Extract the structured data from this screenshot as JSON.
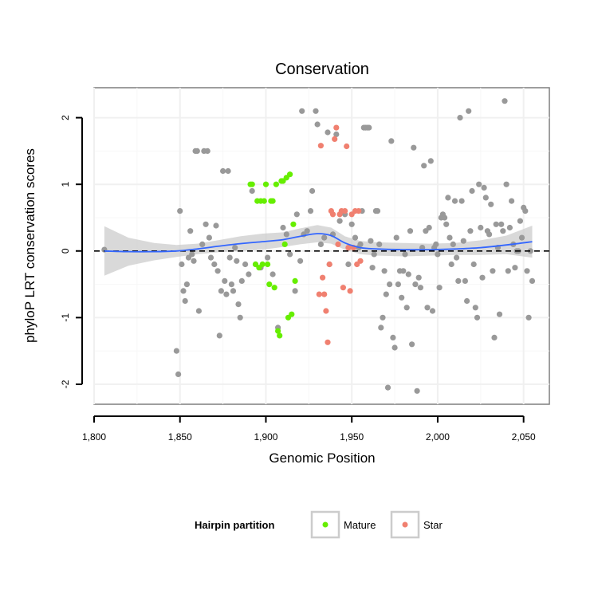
{
  "chart_data": {
    "type": "scatter",
    "title": "Conservation",
    "xlabel": "Genomic Position",
    "ylabel": "phyloP LRT conservation scores",
    "xlim": [
      1800,
      2065
    ],
    "ylim": [
      -2.3,
      2.45
    ],
    "x_ticks": [
      1800,
      1850,
      1900,
      1950,
      2000,
      2050
    ],
    "x_tick_labels": [
      "1,800",
      "1,850",
      "1,900",
      "1,950",
      "2,000",
      "2,050"
    ],
    "y_ticks": [
      -2,
      -1,
      0,
      1,
      2
    ],
    "y_tick_labels": [
      "-2",
      "-1",
      "0",
      "1",
      "2"
    ],
    "reference_line": {
      "y": 0,
      "style": "dashed",
      "color": "#000000"
    },
    "grid": true,
    "legend": {
      "title": "Hairpin partition",
      "placement": "bottom",
      "entries": [
        {
          "label": "Mature",
          "color": "#66ee00"
        },
        {
          "label": "Star",
          "color": "#f08070"
        }
      ]
    },
    "colors": {
      "other": "#999999",
      "mature": "#66ee00",
      "star": "#f08070",
      "smooth_line": "#3366ff",
      "band": "#cccccc"
    },
    "series": [
      {
        "group": "other",
        "points": [
          [
            1806,
            0.02
          ],
          [
            1848,
            -1.5
          ],
          [
            1849,
            -1.85
          ],
          [
            1850,
            0.6
          ],
          [
            1851,
            -0.2
          ],
          [
            1852,
            -0.6
          ],
          [
            1853,
            -0.75
          ],
          [
            1854,
            -0.5
          ],
          [
            1855,
            -0.1
          ],
          [
            1856,
            0.3
          ],
          [
            1857,
            -0.05
          ],
          [
            1858,
            -0.15
          ],
          [
            1859,
            1.5
          ],
          [
            1860,
            1.5
          ],
          [
            1861,
            -0.9
          ],
          [
            1863,
            0.1
          ],
          [
            1864,
            1.5
          ],
          [
            1865,
            0.4
          ],
          [
            1866,
            1.5
          ],
          [
            1867,
            0.2
          ],
          [
            1868,
            -0.1
          ],
          [
            1870,
            -0.2
          ],
          [
            1871,
            0.38
          ],
          [
            1872,
            -0.3
          ],
          [
            1873,
            -1.27
          ],
          [
            1874,
            -0.6
          ],
          [
            1875,
            1.2
          ],
          [
            1876,
            -0.45
          ],
          [
            1877,
            -0.65
          ],
          [
            1878,
            1.2
          ],
          [
            1879,
            -0.1
          ],
          [
            1880,
            -0.5
          ],
          [
            1881,
            -0.6
          ],
          [
            1882,
            0.05
          ],
          [
            1883,
            -0.15
          ],
          [
            1884,
            -0.8
          ],
          [
            1885,
            -1.0
          ],
          [
            1886,
            -0.45
          ],
          [
            1888,
            -0.2
          ],
          [
            1890,
            -0.35
          ],
          [
            1892,
            0.9
          ],
          [
            1894,
            -0.2
          ],
          [
            1897,
            -0.25
          ],
          [
            1901,
            -0.1
          ],
          [
            1904,
            -0.35
          ],
          [
            1907,
            -1.15
          ],
          [
            1910,
            0.35
          ],
          [
            1912,
            0.25
          ],
          [
            1914,
            -0.05
          ],
          [
            1917,
            -0.6
          ],
          [
            1918,
            0.55
          ],
          [
            1920,
            -0.15
          ],
          [
            1921,
            2.1
          ],
          [
            1922,
            0.25
          ],
          [
            1924,
            0.3
          ],
          [
            1926,
            0.6
          ],
          [
            1927,
            0.9
          ],
          [
            1929,
            2.1
          ],
          [
            1930,
            1.9
          ],
          [
            1932,
            0.1
          ],
          [
            1934,
            0.2
          ],
          [
            1936,
            1.78
          ],
          [
            1937,
            -0.2
          ],
          [
            1939,
            0.25
          ],
          [
            1941,
            1.75
          ],
          [
            1943,
            0.45
          ],
          [
            1946,
            0.55
          ],
          [
            1948,
            -0.2
          ],
          [
            1950,
            0.4
          ],
          [
            1952,
            0.2
          ],
          [
            1954,
            0.05
          ],
          [
            1955,
            0.1
          ],
          [
            1956,
            0.6
          ],
          [
            1957,
            1.85
          ],
          [
            1958,
            1.85
          ],
          [
            1959,
            1.85
          ],
          [
            1960,
            1.85
          ],
          [
            1961,
            0.15
          ],
          [
            1962,
            -0.25
          ],
          [
            1963,
            -0.05
          ],
          [
            1964,
            0.6
          ],
          [
            1965,
            0.6
          ],
          [
            1966,
            0.1
          ],
          [
            1967,
            -1.15
          ],
          [
            1968,
            -1.0
          ],
          [
            1969,
            -0.3
          ],
          [
            1970,
            -0.65
          ],
          [
            1971,
            -2.05
          ],
          [
            1972,
            -0.5
          ],
          [
            1973,
            1.65
          ],
          [
            1974,
            -1.3
          ],
          [
            1975,
            -1.45
          ],
          [
            1976,
            0.2
          ],
          [
            1977,
            -0.5
          ],
          [
            1978,
            -0.3
          ],
          [
            1979,
            -0.7
          ],
          [
            1980,
            -0.3
          ],
          [
            1981,
            -0.05
          ],
          [
            1982,
            -0.85
          ],
          [
            1983,
            -0.35
          ],
          [
            1984,
            0.3
          ],
          [
            1985,
            -1.4
          ],
          [
            1986,
            1.55
          ],
          [
            1987,
            -0.5
          ],
          [
            1988,
            -2.1
          ],
          [
            1989,
            -0.4
          ],
          [
            1990,
            -0.55
          ],
          [
            1991,
            0.05
          ],
          [
            1992,
            1.28
          ],
          [
            1993,
            0.3
          ],
          [
            1994,
            -0.85
          ],
          [
            1995,
            0.35
          ],
          [
            1996,
            1.35
          ],
          [
            1997,
            -0.9
          ],
          [
            1998,
            0.05
          ],
          [
            1999,
            0.1
          ],
          [
            2000,
            -0.05
          ],
          [
            2001,
            -0.55
          ],
          [
            2002,
            0.5
          ],
          [
            2003,
            0.55
          ],
          [
            2004,
            0.5
          ],
          [
            2005,
            0.4
          ],
          [
            2006,
            0.8
          ],
          [
            2007,
            0.2
          ],
          [
            2008,
            -0.2
          ],
          [
            2009,
            0.1
          ],
          [
            2010,
            0.75
          ],
          [
            2011,
            -0.1
          ],
          [
            2012,
            -0.45
          ],
          [
            2013,
            2.0
          ],
          [
            2014,
            0.75
          ],
          [
            2015,
            0.15
          ],
          [
            2016,
            -0.45
          ],
          [
            2017,
            -0.75
          ],
          [
            2018,
            2.1
          ],
          [
            2019,
            0.3
          ],
          [
            2020,
            0.9
          ],
          [
            2021,
            -0.2
          ],
          [
            2022,
            -0.85
          ],
          [
            2023,
            -1.0
          ],
          [
            2024,
            1.0
          ],
          [
            2025,
            0.35
          ],
          [
            2026,
            -0.4
          ],
          [
            2027,
            0.95
          ],
          [
            2028,
            0.8
          ],
          [
            2029,
            0.3
          ],
          [
            2030,
            0.25
          ],
          [
            2031,
            0.7
          ],
          [
            2032,
            -0.3
          ],
          [
            2033,
            -1.3
          ],
          [
            2034,
            0.4
          ],
          [
            2035,
            0.05
          ],
          [
            2036,
            -0.95
          ],
          [
            2037,
            0.4
          ],
          [
            2038,
            0.3
          ],
          [
            2039,
            2.25
          ],
          [
            2040,
            1.0
          ],
          [
            2041,
            -0.3
          ],
          [
            2042,
            0.35
          ],
          [
            2043,
            0.75
          ],
          [
            2044,
            0.1
          ],
          [
            2045,
            -0.25
          ],
          [
            2046,
            0.0
          ],
          [
            2047,
            0.0
          ],
          [
            2048,
            0.45
          ],
          [
            2049,
            0.2
          ],
          [
            2050,
            0.65
          ],
          [
            2051,
            0.6
          ],
          [
            2052,
            -0.3
          ],
          [
            2053,
            -1.0
          ],
          [
            2054,
            0.0
          ],
          [
            2055,
            -0.45
          ]
        ]
      },
      {
        "group": "mature",
        "name": "Mature",
        "points": [
          [
            1891,
            1.0
          ],
          [
            1892,
            1.0
          ],
          [
            1894,
            -0.2
          ],
          [
            1895,
            0.75
          ],
          [
            1896,
            -0.25
          ],
          [
            1897,
            0.75
          ],
          [
            1898,
            -0.2
          ],
          [
            1899,
            0.75
          ],
          [
            1900,
            1.0
          ],
          [
            1901,
            -0.2
          ],
          [
            1902,
            -0.5
          ],
          [
            1903,
            0.75
          ],
          [
            1904,
            0.75
          ],
          [
            1905,
            -0.55
          ],
          [
            1906,
            1.0
          ],
          [
            1907,
            -1.2
          ],
          [
            1908,
            -1.27
          ],
          [
            1909,
            1.05
          ],
          [
            1910,
            1.05
          ],
          [
            1911,
            0.1
          ],
          [
            1912,
            1.1
          ],
          [
            1913,
            -1.0
          ],
          [
            1914,
            1.15
          ],
          [
            1915,
            -0.95
          ],
          [
            1916,
            0.4
          ],
          [
            1917,
            -0.45
          ]
        ]
      },
      {
        "group": "star",
        "name": "Star",
        "points": [
          [
            1931,
            -0.65
          ],
          [
            1932,
            1.58
          ],
          [
            1933,
            -0.4
          ],
          [
            1934,
            -0.65
          ],
          [
            1935,
            -0.9
          ],
          [
            1936,
            -1.37
          ],
          [
            1937,
            -0.2
          ],
          [
            1938,
            0.6
          ],
          [
            1939,
            0.55
          ],
          [
            1940,
            1.68
          ],
          [
            1941,
            1.85
          ],
          [
            1942,
            0.1
          ],
          [
            1943,
            0.55
          ],
          [
            1944,
            0.6
          ],
          [
            1945,
            -0.55
          ],
          [
            1946,
            0.6
          ],
          [
            1947,
            1.57
          ],
          [
            1948,
            0.05
          ],
          [
            1949,
            -0.6
          ],
          [
            1950,
            0.55
          ],
          [
            1951,
            0.05
          ],
          [
            1952,
            0.6
          ],
          [
            1953,
            -0.2
          ],
          [
            1954,
            0.6
          ],
          [
            1955,
            -0.15
          ]
        ]
      }
    ],
    "smooth": {
      "x": [
        1806,
        1820,
        1835,
        1848,
        1860,
        1872,
        1885,
        1898,
        1910,
        1920,
        1930,
        1938,
        1946,
        1955,
        1965,
        1980,
        1995,
        2010,
        2025,
        2040,
        2055
      ],
      "y": [
        0.0,
        -0.01,
        -0.01,
        0.0,
        0.03,
        0.07,
        0.11,
        0.14,
        0.17,
        0.22,
        0.26,
        0.23,
        0.12,
        0.05,
        0.03,
        0.02,
        0.02,
        0.03,
        0.05,
        0.09,
        0.14
      ],
      "ymin": [
        -0.37,
        -0.22,
        -0.14,
        -0.09,
        -0.05,
        -0.02,
        0.0,
        0.02,
        0.06,
        0.1,
        0.13,
        0.11,
        0.02,
        -0.05,
        -0.07,
        -0.08,
        -0.07,
        -0.06,
        -0.06,
        -0.05,
        -0.1
      ],
      "ymax": [
        0.37,
        0.2,
        0.12,
        0.09,
        0.11,
        0.16,
        0.22,
        0.26,
        0.28,
        0.34,
        0.39,
        0.35,
        0.22,
        0.15,
        0.13,
        0.12,
        0.11,
        0.12,
        0.16,
        0.23,
        0.38
      ]
    }
  }
}
